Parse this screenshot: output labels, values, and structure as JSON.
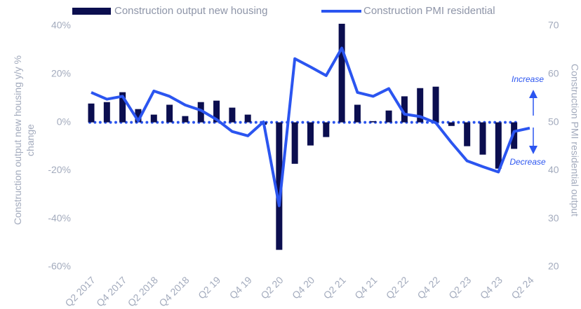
{
  "chart_data": {
    "type": "bar-line",
    "categories": [
      "Q2 2017",
      null,
      "Q4 2017",
      null,
      "Q2 2018",
      null,
      "Q4 2018",
      null,
      "Q2 19",
      null,
      "Q4 19",
      null,
      "Q2 20",
      null,
      "Q4 20",
      null,
      "Q2 21",
      null,
      "Q4 21",
      null,
      "Q2 22",
      null,
      "Q4 22",
      null,
      "Q2 23",
      null,
      "Q4 23",
      null,
      "Q2 24"
    ],
    "series": [
      {
        "name": "Construction output new housing",
        "type": "bar",
        "color": "#0b0e4f",
        "values": [
          7.8,
          8.4,
          12.5,
          5.5,
          3.2,
          7.3,
          2.6,
          8.4,
          9,
          6.1,
          3.2,
          -1,
          -52.9,
          -17.2,
          -9.6,
          -6.1,
          40.9,
          7.3,
          0.5,
          4.9,
          10.8,
          14.2,
          14.8,
          -1.5,
          -9.9,
          -13.4,
          -19.2,
          -11,
          null
        ]
      },
      {
        "name": "Construction PMI residential",
        "type": "line",
        "axis": "y2",
        "color": "#2b55f0",
        "values": [
          56.2,
          54.8,
          55.4,
          50.3,
          56.5,
          55.4,
          53.6,
          52.5,
          50.6,
          48.1,
          47.2,
          50.1,
          32.7,
          63.2,
          61.5,
          59.7,
          65.4,
          56.2,
          55.4,
          57,
          51.7,
          51.2,
          49.9,
          45.8,
          42,
          40.8,
          39.7,
          48.1,
          48.8
        ]
      }
    ],
    "ylabel": [
      "Construction output new housing y/y %",
      "change"
    ],
    "y2label": "Construction PMI residential output",
    "ylim": [
      -60,
      40
    ],
    "yticks": [
      {
        "value": -60,
        "label": "-60%"
      },
      {
        "value": -40,
        "label": "-40%"
      },
      {
        "value": -20,
        "label": "-20%"
      },
      {
        "value": 0,
        "label": "0%"
      },
      {
        "value": 20,
        "label": "20%"
      },
      {
        "value": 40,
        "label": "40%"
      }
    ],
    "y2lim": [
      20,
      70
    ],
    "y2ticks": [
      20,
      30,
      40,
      50,
      60,
      70
    ],
    "reference_line": {
      "axis": "y2",
      "value": 50,
      "color": "#2b55f0"
    },
    "annotations": [
      "Increase",
      "Decrease"
    ],
    "legend": "top"
  }
}
